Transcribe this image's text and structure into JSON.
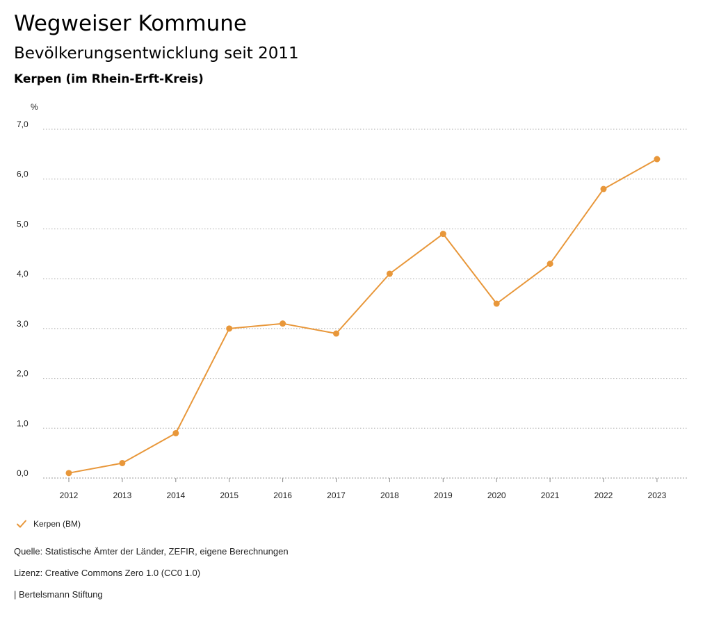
{
  "header": {
    "title": "Wegweiser Kommune",
    "subtitle": "Bevölkerungsentwicklung seit 2011",
    "region": "Kerpen (im Rhein-Erft-Kreis)"
  },
  "chart_data": {
    "type": "line",
    "x": [
      "2012",
      "2013",
      "2014",
      "2015",
      "2016",
      "2017",
      "2018",
      "2019",
      "2020",
      "2021",
      "2022",
      "2023"
    ],
    "series": [
      {
        "name": "Kerpen (BM)",
        "values": [
          0.1,
          0.3,
          0.9,
          3.0,
          3.1,
          2.9,
          4.1,
          4.9,
          3.5,
          4.3,
          5.8,
          6.4
        ],
        "color": "#e8973a"
      }
    ],
    "y_unit": "%",
    "ylim": [
      0,
      7
    ],
    "y_ticks": [
      "0,0",
      "1,0",
      "2,0",
      "3,0",
      "4,0",
      "5,0",
      "6,0",
      "7,0"
    ],
    "grid": true,
    "legend_position": "bottom-left"
  },
  "legend": {
    "label": "Kerpen (BM)"
  },
  "footer": {
    "source": "Quelle: Statistische Ämter der Länder, ZEFIR, eigene Berechnungen",
    "license": "Lizenz: Creative Commons Zero 1.0 (CC0 1.0)",
    "publisher": "| Bertelsmann Stiftung"
  }
}
